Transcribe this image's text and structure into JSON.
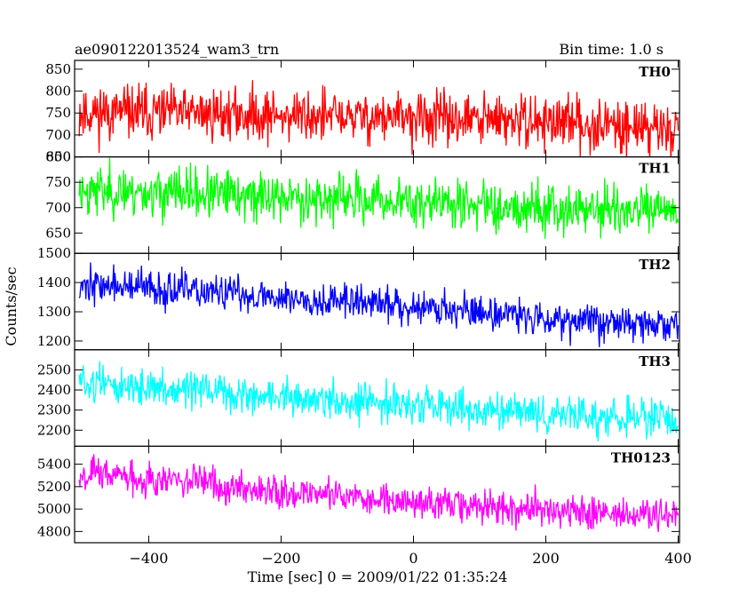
{
  "chart_data": {
    "type": "line",
    "title_left": "ae090122013524_wam3_trn",
    "title_right": "Bin time: 1.0 s",
    "xlabel": "Time [sec] 0 = 2009/01/22 01:35:24",
    "ylabel": "Counts/sec",
    "xlim": [
      -512,
      402
    ],
    "x_ticks": [
      -400,
      -200,
      0,
      200,
      400
    ],
    "grid": false,
    "panels": [
      {
        "name": "TH0",
        "color": "#ff0000",
        "ylim": [
          650,
          870
        ],
        "y_ticks": [
          650,
          700,
          750,
          800,
          850
        ],
        "trend": [
          [
            -505,
            752
          ],
          [
            -300,
            748
          ],
          [
            0,
            738
          ],
          [
            200,
            730
          ],
          [
            400,
            714
          ]
        ],
        "noise": 30,
        "seed": 11
      },
      {
        "name": "TH1",
        "color": "#00ff00",
        "ylim": [
          610,
          800
        ],
        "y_ticks": [
          650,
          700,
          750,
          800
        ],
        "trend": [
          [
            -505,
            735
          ],
          [
            -300,
            725
          ],
          [
            0,
            712
          ],
          [
            200,
            700
          ],
          [
            400,
            690
          ]
        ],
        "noise": 24,
        "seed": 23
      },
      {
        "name": "TH2",
        "color": "#0000ff",
        "ylim": [
          1170,
          1500
        ],
        "y_ticks": [
          1200,
          1300,
          1400,
          1500
        ],
        "trend": [
          [
            -505,
            1395
          ],
          [
            -300,
            1365
          ],
          [
            0,
            1320
          ],
          [
            200,
            1280
          ],
          [
            400,
            1250
          ]
        ],
        "noise": 30,
        "seed": 37
      },
      {
        "name": "TH3",
        "color": "#00ffff",
        "ylim": [
          2120,
          2600
        ],
        "y_ticks": [
          2200,
          2300,
          2400,
          2500
        ],
        "trend": [
          [
            -505,
            2440
          ],
          [
            -300,
            2385
          ],
          [
            0,
            2320
          ],
          [
            200,
            2280
          ],
          [
            400,
            2250
          ]
        ],
        "noise": 45,
        "seed": 51
      },
      {
        "name": "TH0123",
        "color": "#ff00ff",
        "ylim": [
          4700,
          5560
        ],
        "y_ticks": [
          4800,
          5000,
          5200,
          5400
        ],
        "trend": [
          [
            -505,
            5330
          ],
          [
            -300,
            5220
          ],
          [
            0,
            5060
          ],
          [
            200,
            4990
          ],
          [
            400,
            4930
          ]
        ],
        "noise": 75,
        "seed": 67
      }
    ]
  }
}
